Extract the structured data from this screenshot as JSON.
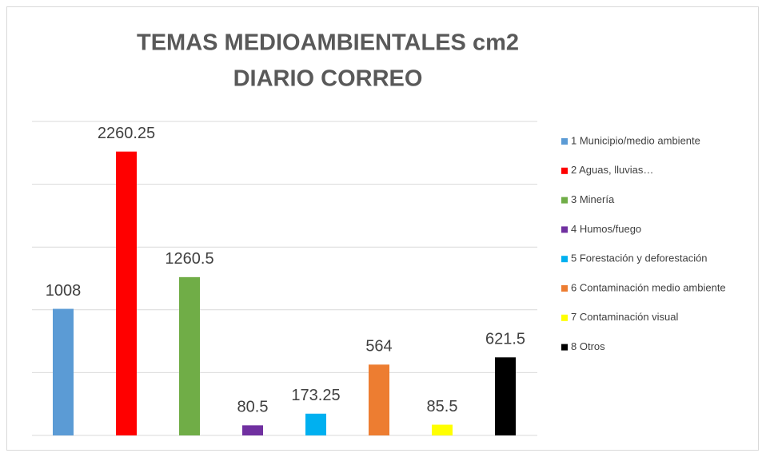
{
  "chart_data": {
    "type": "bar",
    "title": [
      "TEMAS MEDIOAMBIENTALES cm2",
      "DIARIO CORREO"
    ],
    "categories": [
      null
    ],
    "series": [
      {
        "name": "1 Municipio/medio ambiente",
        "color": "#5b9bd5",
        "values": [
          1008
        ]
      },
      {
        "name": "2 Aguas, lluvias…",
        "color": "#ff0000",
        "values": [
          2260.25
        ]
      },
      {
        "name": "3 Minería",
        "color": "#70ad47",
        "values": [
          1260.5
        ]
      },
      {
        "name": "4 Humos/fuego",
        "color": "#7030a0",
        "values": [
          80.5
        ]
      },
      {
        "name": "5 Forestación y deforestación",
        "color": "#00b0f0",
        "values": [
          173.25
        ]
      },
      {
        "name": "6 Contaminación medio ambiente",
        "color": "#ed7d31",
        "values": [
          564
        ]
      },
      {
        "name": "7 Contaminación visual",
        "color": "#ffff00",
        "values": [
          85.5
        ]
      },
      {
        "name": "8 Otros",
        "color": "#000000",
        "values": [
          621.5
        ]
      }
    ],
    "ylim": [
      0,
      2500
    ],
    "yticks": [
      0,
      500,
      1000,
      1500,
      2000,
      2500
    ],
    "grid": true,
    "legend": "right"
  }
}
